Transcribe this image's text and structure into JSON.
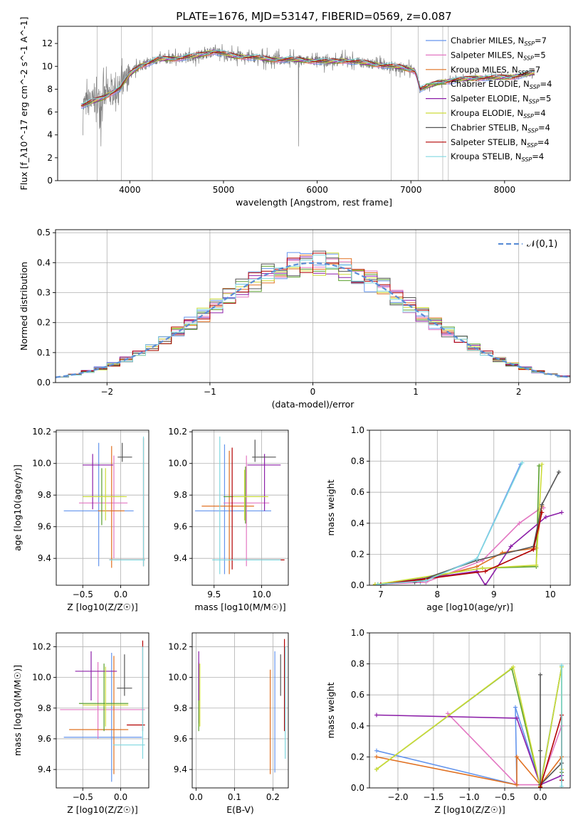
{
  "colors": [
    "#6495ed",
    "#e377c2",
    "#e07020",
    "#5aa02c",
    "#8c1fa8",
    "#cddc39",
    "#555555",
    "#b30000",
    "#80d8e0"
  ],
  "chart_data": [
    {
      "id": "spectrum",
      "type": "line",
      "title": "PLATE=1676, MJD=53147, FIBERID=0569, z=0.087",
      "xlabel": "wavelength [Angstrom, rest frame]",
      "ylabel": "Flux [f_λ10^-17 erg cm^-2 s^-1 A^-1]",
      "xlim": [
        3230,
        8700
      ],
      "ylim": [
        0,
        13.5
      ],
      "xticks": [
        "4000",
        "5000",
        "6000",
        "7000",
        "8000"
      ],
      "yticks": [
        "0",
        "2",
        "4",
        "6",
        "8",
        "10",
        "12"
      ],
      "legend_position": "right",
      "legend": [
        "Chabrier MILES, N_SSP=7",
        "Salpeter MILES, N_SSP=5",
        "Kroupa MILES, N_SSP=7",
        "Chabrier ELODIE, N_SSP=4",
        "Salpeter ELODIE, N_SSP=5",
        "Kroupa ELODIE, N_SSP=4",
        "Chabrier STELIB, N_SSP=4",
        "Salpeter STELIB, N_SSP=4",
        "Kroupa STELIB, N_SSP=4"
      ],
      "model_points": [
        [
          3500,
          6.6
        ],
        [
          3700,
          7.2
        ],
        [
          3900,
          8.1
        ],
        [
          4000,
          9.3
        ],
        [
          4100,
          10.0
        ],
        [
          4300,
          10.6
        ],
        [
          4500,
          10.7
        ],
        [
          4700,
          10.9
        ],
        [
          4900,
          11.3
        ],
        [
          5100,
          10.9
        ],
        [
          5300,
          10.8
        ],
        [
          5500,
          10.6
        ],
        [
          5700,
          10.6
        ],
        [
          5900,
          10.5
        ],
        [
          6100,
          10.4
        ],
        [
          6300,
          10.5
        ],
        [
          6500,
          10.3
        ],
        [
          6700,
          10.1
        ],
        [
          6900,
          9.9
        ],
        [
          7050,
          9.6
        ],
        [
          7100,
          8.0
        ],
        [
          7300,
          8.6
        ],
        [
          7500,
          8.8
        ],
        [
          7700,
          9.0
        ],
        [
          7900,
          9.0
        ],
        [
          8100,
          9.1
        ],
        [
          8300,
          9.4
        ]
      ]
    },
    {
      "id": "residuals",
      "type": "line",
      "xlabel": "(data-model)/error",
      "ylabel": "Normed distribution",
      "xlim": [
        -2.5,
        2.5
      ],
      "ylim": [
        0,
        0.51
      ],
      "xticks": [
        "−2",
        "−1",
        "0",
        "1",
        "2"
      ],
      "yticks": [
        "0.0",
        "0.1",
        "0.2",
        "0.3",
        "0.4",
        "0.5"
      ],
      "legend": [
        "𝒩(0,1)"
      ],
      "legend_position": "top-right",
      "grid": true
    },
    {
      "id": "age_vs_Z",
      "type": "scatter",
      "xlabel": "Z [log10(Z/Z☉)]",
      "ylabel": "age [log10(age/yr)]",
      "xlim": [
        -0.85,
        0.37
      ],
      "ylim": [
        9.23,
        10.21
      ],
      "xticks": [
        "−0.5",
        "0.0"
      ],
      "yticks": [
        "9.4",
        "9.6",
        "9.8",
        "10.0",
        "10.2"
      ],
      "points": [
        {
          "x": -0.29,
          "y": 9.7,
          "xlo": -0.75,
          "xhi": 0.17,
          "ylo": 9.35,
          "yhi": 10.13
        },
        {
          "x": -0.09,
          "y": 9.75,
          "xlo": -0.55,
          "xhi": 0.09,
          "ylo": 9.4,
          "yhi": 10.05
        },
        {
          "x": -0.12,
          "y": 9.7,
          "xlo": -0.3,
          "xhi": 0.05,
          "ylo": 9.34,
          "yhi": 10.11
        },
        {
          "x": -0.25,
          "y": 9.79,
          "xlo": -0.5,
          "xhi": 0.05,
          "ylo": 9.61,
          "yhi": 9.97
        },
        {
          "x": -0.37,
          "y": 9.99,
          "xlo": -0.5,
          "xhi": -0.1,
          "ylo": 9.71,
          "yhi": 10.06
        },
        {
          "x": -0.2,
          "y": 9.79,
          "xlo": -0.5,
          "xhi": 0.08,
          "ylo": 9.64,
          "yhi": 9.97
        },
        {
          "x": 0.02,
          "y": 10.04,
          "xlo": -0.04,
          "xhi": 0.15,
          "ylo": 10.01,
          "yhi": 10.13
        },
        {
          "x": 0.3,
          "y": 9.39,
          "xlo": -0.15,
          "xhi": 0.32,
          "ylo": 9.35,
          "yhi": 10.16
        },
        {
          "x": 0.3,
          "y": 9.39,
          "xlo": -0.15,
          "xhi": 0.32,
          "ylo": 9.35,
          "yhi": 10.17
        }
      ]
    },
    {
      "id": "age_vs_mass",
      "type": "scatter",
      "xlabel": "mass [log10(M/M☉)]",
      "ylabel": "",
      "xlim": [
        9.27,
        10.28
      ],
      "ylim": [
        9.23,
        10.21
      ],
      "xticks": [
        "9.5",
        "10.0"
      ],
      "yticks": [
        "9.4",
        "9.6",
        "9.8",
        "10.0",
        "10.2"
      ],
      "points": [
        {
          "x": 9.61,
          "y": 9.7,
          "xlo": 9.3,
          "xhi": 10.1,
          "ylo": 9.3,
          "yhi": 10.12
        },
        {
          "x": 9.84,
          "y": 9.75,
          "xlo": 9.6,
          "xhi": 10.08,
          "ylo": 9.35,
          "yhi": 10.05
        },
        {
          "x": 9.66,
          "y": 9.73,
          "xlo": 9.37,
          "xhi": 9.92,
          "ylo": 9.3,
          "yhi": 10.08
        },
        {
          "x": 9.83,
          "y": 9.79,
          "xlo": 9.6,
          "xhi": 10.05,
          "ylo": 9.62,
          "yhi": 9.98
        },
        {
          "x": 10.03,
          "y": 9.99,
          "xlo": 9.85,
          "xhi": 10.2,
          "ylo": 9.7,
          "yhi": 10.06
        },
        {
          "x": 9.82,
          "y": 9.79,
          "xlo": 9.7,
          "xhi": 10.07,
          "ylo": 9.64,
          "yhi": 9.96
        },
        {
          "x": 9.93,
          "y": 10.04,
          "xlo": 9.9,
          "xhi": 10.15,
          "ylo": 10.01,
          "yhi": 10.15
        },
        {
          "x": 9.69,
          "y": 9.39,
          "xlo": 9.66,
          "xhi": 10.24,
          "ylo": 9.33,
          "yhi": 10.1
        },
        {
          "x": 9.56,
          "y": 9.39,
          "xlo": 9.48,
          "xhi": 10.2,
          "ylo": 9.3,
          "yhi": 10.17
        }
      ]
    },
    {
      "id": "weight_vs_age",
      "type": "line",
      "xlabel": "age [log10(age/yr)]",
      "ylabel": "mass weight",
      "xlim": [
        6.8,
        10.35
      ],
      "ylim": [
        0,
        1.0
      ],
      "xticks": [
        "7",
        "8",
        "9",
        "10"
      ],
      "yticks": [
        "0.0",
        "0.2",
        "0.4",
        "0.6",
        "0.8",
        "1.0"
      ],
      "grid": true,
      "series": [
        {
          "points": [
            [
              6.95,
              0.005
            ],
            [
              7.7,
              0.02
            ],
            [
              8.7,
              0.17
            ],
            [
              9.47,
              0.78
            ]
          ]
        },
        {
          "points": [
            [
              6.95,
              0.005
            ],
            [
              7.8,
              0.02
            ],
            [
              8.8,
              0.16
            ],
            [
              9.45,
              0.4
            ],
            [
              9.8,
              0.49
            ],
            [
              9.88,
              0.5
            ]
          ]
        },
        {
          "points": [
            [
              6.9,
              0.005
            ],
            [
              7.7,
              0.03
            ],
            [
              8.7,
              0.12
            ],
            [
              9.15,
              0.21
            ],
            [
              9.75,
              0.24
            ],
            [
              9.85,
              0.51
            ]
          ]
        },
        {
          "points": [
            [
              6.95,
              0.005
            ],
            [
              8.8,
              0.11
            ],
            [
              9.75,
              0.12
            ],
            [
              9.8,
              0.77
            ]
          ]
        },
        {
          "points": [
            [
              7.0,
              0.005
            ],
            [
              8.7,
              0.09
            ],
            [
              8.85,
              0.0
            ],
            [
              9.3,
              0.25
            ],
            [
              9.92,
              0.44
            ],
            [
              10.2,
              0.47
            ]
          ]
        },
        {
          "points": [
            [
              6.9,
              0.005
            ],
            [
              8.8,
              0.11
            ],
            [
              9.75,
              0.13
            ],
            [
              9.85,
              0.78
            ]
          ]
        },
        {
          "points": [
            [
              7.6,
              0.02
            ],
            [
              8.7,
              0.16
            ],
            [
              9.7,
              0.25
            ],
            [
              9.85,
              0.52
            ],
            [
              10.15,
              0.73
            ]
          ]
        },
        {
          "points": [
            [
              7.0,
              0.005
            ],
            [
              8.85,
              0.09
            ],
            [
              9.7,
              0.23
            ],
            [
              9.85,
              0.47
            ]
          ]
        },
        {
          "points": [
            [
              6.95,
              0.005
            ],
            [
              7.8,
              0.03
            ],
            [
              8.7,
              0.17
            ],
            [
              9.5,
              0.79
            ]
          ]
        }
      ]
    },
    {
      "id": "mass_vs_Z",
      "type": "scatter",
      "xlabel": "Z [log10(Z/Z☉)]",
      "ylabel": "mass [log10(M/M☉)]",
      "xlim": [
        -0.85,
        0.37
      ],
      "ylim": [
        9.28,
        10.29
      ],
      "xticks": [
        "−0.5",
        "0.0"
      ],
      "yticks": [
        "9.4",
        "9.6",
        "9.8",
        "10.0",
        "10.2"
      ],
      "points": [
        {
          "x": -0.12,
          "y": 9.61,
          "xlo": -0.75,
          "xhi": 0.28,
          "ylo": 9.32,
          "yhi": 10.16
        },
        {
          "x": -0.3,
          "y": 9.79,
          "xlo": -0.8,
          "xhi": 0.32,
          "ylo": 9.6,
          "yhi": 10.1
        },
        {
          "x": -0.09,
          "y": 9.66,
          "xlo": -0.68,
          "xhi": 0.1,
          "ylo": 9.37,
          "yhi": 10.14
        },
        {
          "x": -0.22,
          "y": 9.83,
          "xlo": -0.55,
          "xhi": 0.1,
          "ylo": 9.65,
          "yhi": 10.09
        },
        {
          "x": -0.39,
          "y": 10.04,
          "xlo": -0.6,
          "xhi": -0.05,
          "ylo": 9.85,
          "yhi": 10.17
        },
        {
          "x": -0.2,
          "y": 9.82,
          "xlo": -0.5,
          "xhi": 0.1,
          "ylo": 9.68,
          "yhi": 10.07
        },
        {
          "x": 0.05,
          "y": 9.93,
          "xlo": -0.05,
          "xhi": 0.15,
          "ylo": 9.88,
          "yhi": 10.15
        },
        {
          "x": 0.29,
          "y": 9.69,
          "xlo": 0.08,
          "xhi": 0.32,
          "ylo": 9.65,
          "yhi": 10.24
        },
        {
          "x": 0.29,
          "y": 9.56,
          "xlo": -0.1,
          "xhi": 0.32,
          "ylo": 9.47,
          "yhi": 10.2
        }
      ]
    },
    {
      "id": "mass_vs_ebv",
      "type": "scatter",
      "xlabel": "E(B-V)",
      "ylabel": "",
      "xlim": [
        -0.01,
        0.24
      ],
      "ylim": [
        9.28,
        10.29
      ],
      "xticks": [
        "0.0",
        "0.1",
        "0.2"
      ],
      "yticks": [
        "9.4",
        "9.6",
        "9.8",
        "10.0",
        "10.2"
      ],
      "points": [
        {
          "x": 0.205,
          "y": 9.61,
          "xlo": 0.205,
          "xhi": 0.205,
          "ylo": 9.38,
          "yhi": 10.17
        },
        {
          "x": 0.007,
          "y": 9.79,
          "xlo": 0.007,
          "xhi": 0.007,
          "ylo": 9.7,
          "yhi": 10.1
        },
        {
          "x": 0.193,
          "y": 9.66,
          "xlo": 0.193,
          "xhi": 0.193,
          "ylo": 9.37,
          "yhi": 10.05
        },
        {
          "x": 0.007,
          "y": 9.83,
          "xlo": 0.007,
          "xhi": 0.007,
          "ylo": 9.65,
          "yhi": 10.09
        },
        {
          "x": 0.007,
          "y": 10.04,
          "xlo": 0.007,
          "xhi": 0.007,
          "ylo": 9.85,
          "yhi": 10.17
        },
        {
          "x": 0.01,
          "y": 9.82,
          "xlo": 0.01,
          "xhi": 0.01,
          "ylo": 9.68,
          "yhi": 10.09
        },
        {
          "x": 0.22,
          "y": 9.93,
          "xlo": 0.22,
          "xhi": 0.22,
          "ylo": 9.88,
          "yhi": 10.15
        },
        {
          "x": 0.23,
          "y": 9.69,
          "xlo": 0.23,
          "xhi": 0.23,
          "ylo": 9.65,
          "yhi": 10.25
        },
        {
          "x": 0.232,
          "y": 9.56,
          "xlo": 0.232,
          "xhi": 0.232,
          "ylo": 9.47,
          "yhi": 10.2
        }
      ]
    },
    {
      "id": "weight_vs_Z",
      "type": "line",
      "xlabel": "Z [log10(Z/Z☉)]",
      "ylabel": "mass weight",
      "xlim": [
        -2.4,
        0.42
      ],
      "ylim": [
        0,
        1.0
      ],
      "xticks": [
        "−2.0",
        "−1.5",
        "−1.0",
        "−0.5",
        "0.0"
      ],
      "yticks": [
        "0.0",
        "0.2",
        "0.4",
        "0.6",
        "0.8",
        "1.0"
      ],
      "grid": true,
      "series": [
        {
          "points": [
            [
              -2.3,
              0.24
            ],
            [
              -0.33,
              0.02
            ],
            [
              -0.35,
              0.52
            ],
            [
              0.0,
              0.02
            ],
            [
              0.3,
              0.78
            ],
            [
              0.3,
              0.1
            ],
            [
              0.3,
              0.2
            ]
          ]
        },
        {
          "points": [
            [
              -1.3,
              0.48
            ],
            [
              -0.33,
              0.02
            ],
            [
              0.0,
              0.02
            ],
            [
              0.3,
              0.4
            ],
            [
              0.3,
              0.05
            ]
          ]
        },
        {
          "points": [
            [
              -2.3,
              0.2
            ],
            [
              -0.33,
              0.02
            ],
            [
              -0.33,
              0.2
            ],
            [
              0.0,
              0.02
            ],
            [
              0.3,
              0.2
            ],
            [
              0.3,
              0.1
            ],
            [
              0.3,
              0.05
            ]
          ]
        },
        {
          "points": [
            [
              -2.3,
              0.12
            ],
            [
              -0.4,
              0.77
            ],
            [
              0.0,
              0.005
            ],
            [
              0.3,
              0.78
            ],
            [
              0.3,
              0.1
            ]
          ]
        },
        {
          "points": [
            [
              -2.3,
              0.47
            ],
            [
              -0.33,
              0.45
            ],
            [
              0.0,
              0.02
            ],
            [
              0.3,
              0.08
            ],
            [
              0.3,
              0.05
            ]
          ]
        },
        {
          "points": [
            [
              -2.3,
              0.12
            ],
            [
              -0.38,
              0.78
            ],
            [
              0.0,
              0.01
            ],
            [
              0.3,
              0.78
            ],
            [
              0.3,
              0.12
            ]
          ]
        },
        {
          "points": [
            [
              0.0,
              0.73
            ],
            [
              0.0,
              0.24
            ],
            [
              0.0,
              0.02
            ],
            [
              0.3,
              0.16
            ],
            [
              0.3,
              0.05
            ]
          ]
        },
        {
          "points": [
            [
              0.0,
              0.005
            ],
            [
              0.3,
              0.47
            ],
            [
              0.3,
              0.05
            ]
          ]
        },
        {
          "points": [
            [
              0.3,
              0.79
            ],
            [
              0.3,
              0.01
            ]
          ]
        }
      ]
    }
  ]
}
